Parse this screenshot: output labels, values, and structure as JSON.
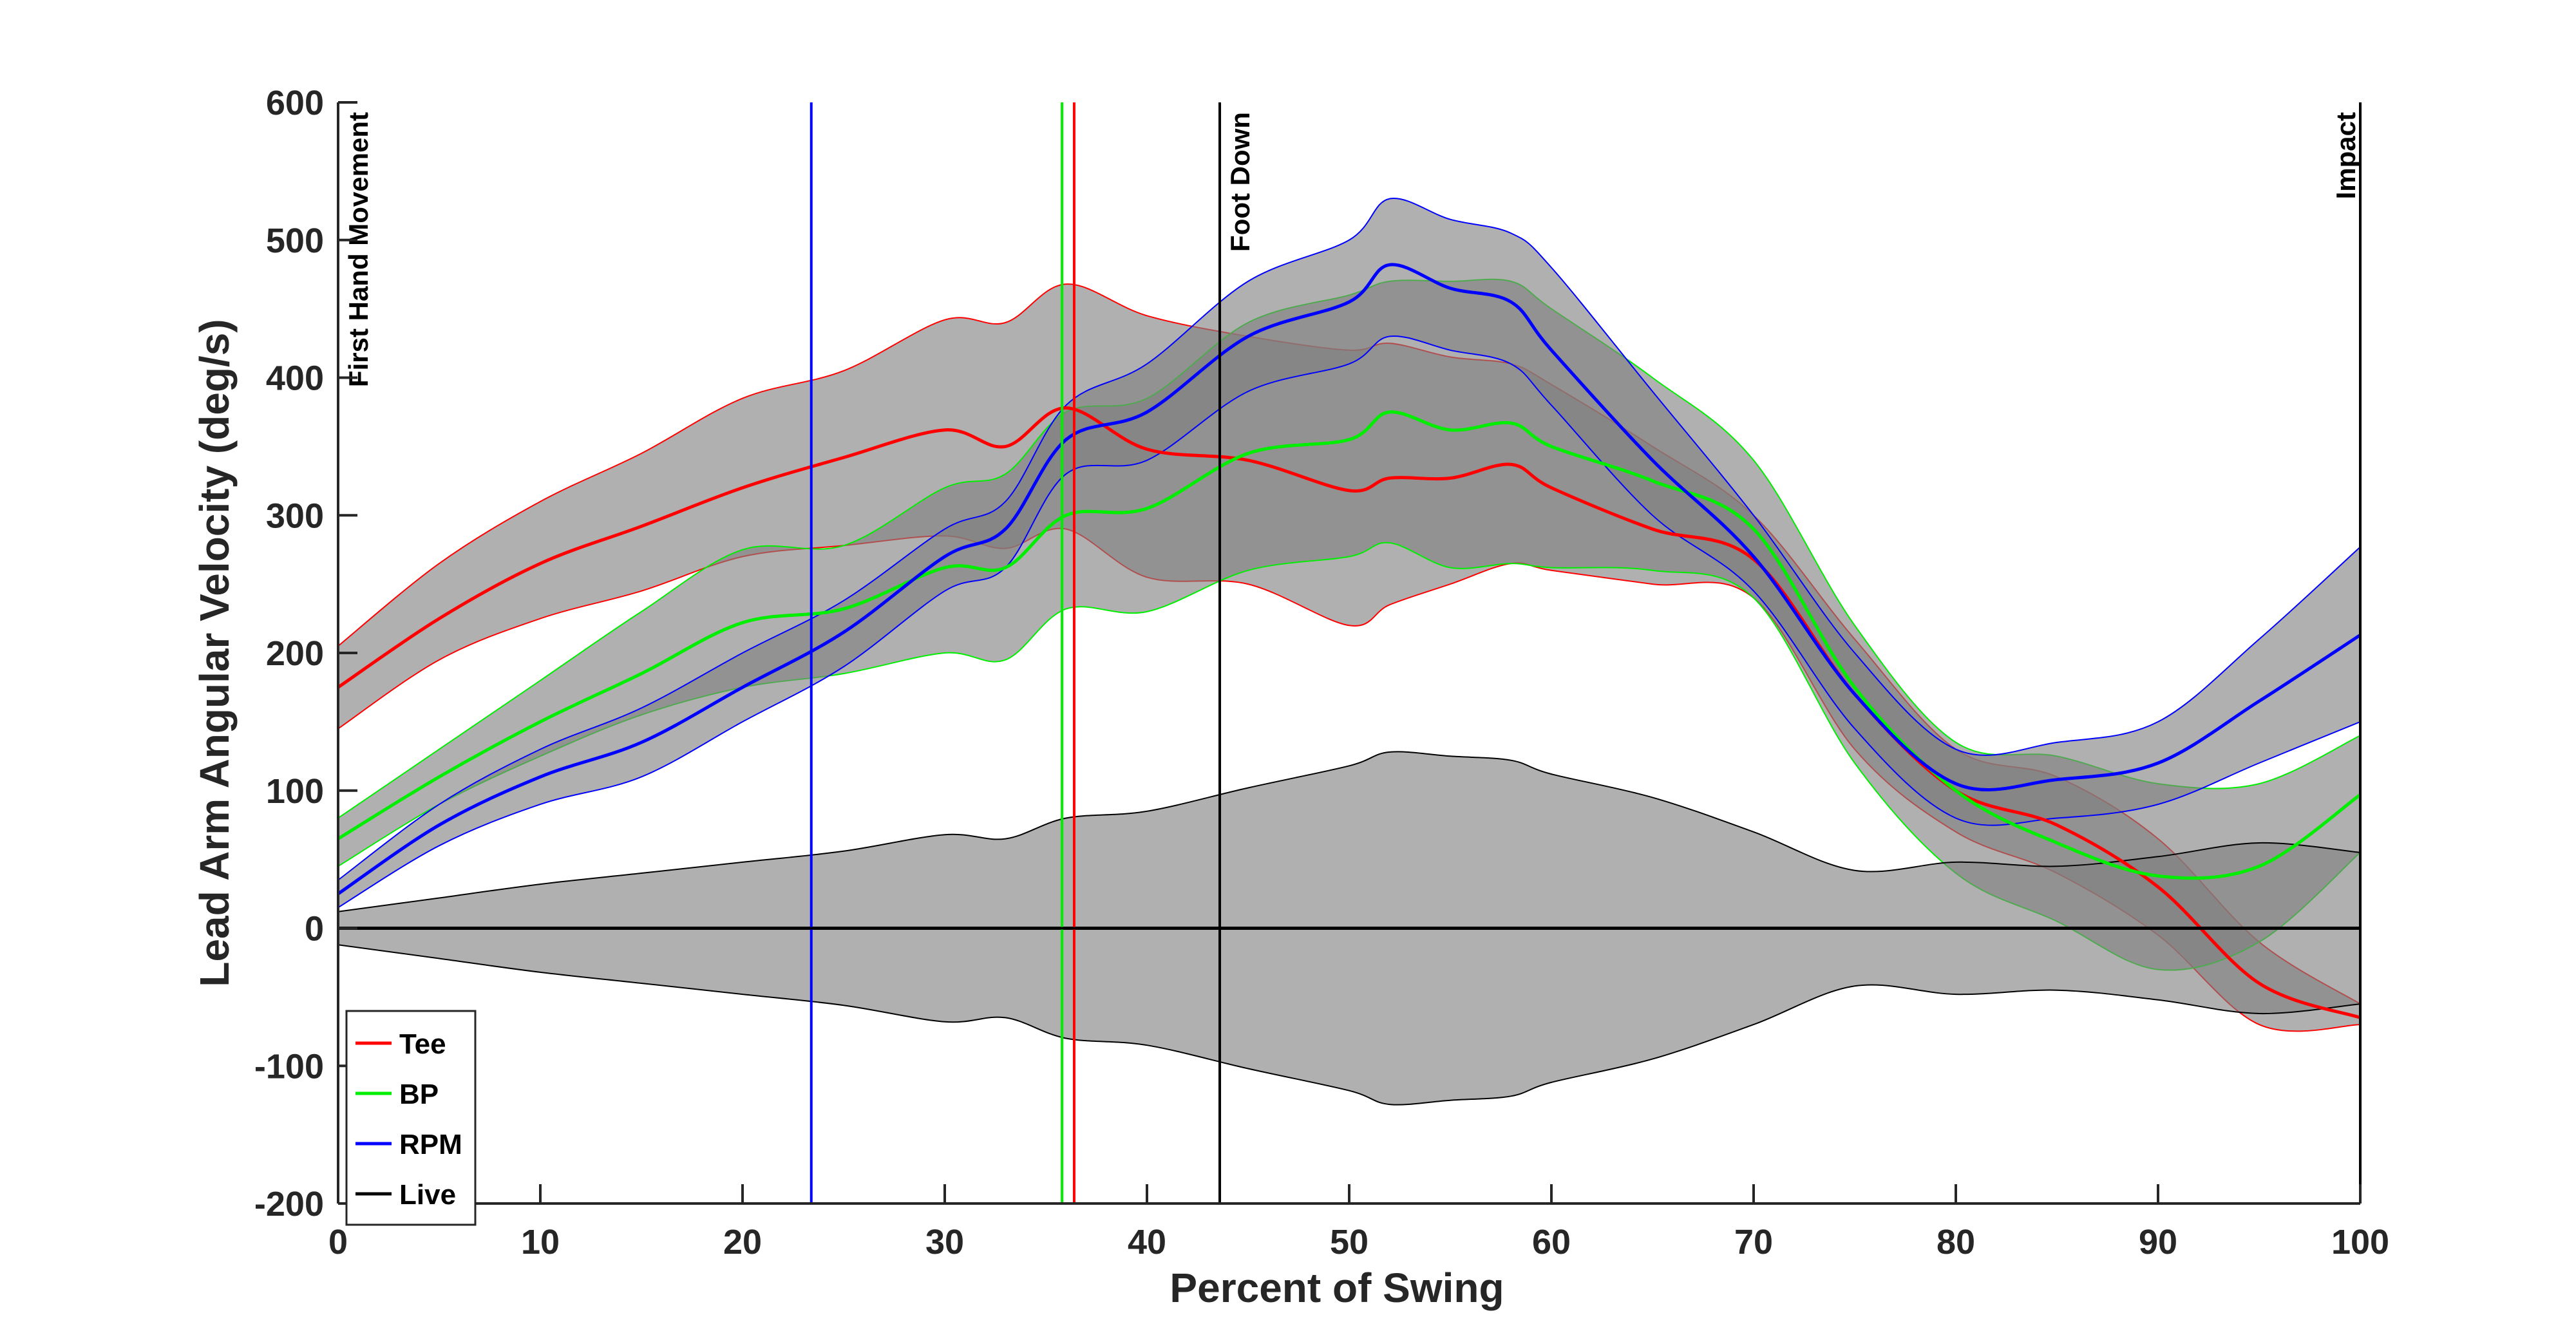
{
  "chart_data": {
    "type": "line",
    "title": "",
    "xlabel": "Percent of Swing",
    "ylabel": "Lead Arm Angular Velocity (deg/s)",
    "xlim": [
      0,
      100
    ],
    "ylim": [
      -200,
      600
    ],
    "xticks": [
      "0",
      "10",
      "20",
      "30",
      "40",
      "50",
      "60",
      "70",
      "80",
      "90",
      "100"
    ],
    "yticks": [
      "-200",
      "-100",
      "0",
      "100",
      "200",
      "300",
      "400",
      "500",
      "600"
    ],
    "grid": false,
    "legend_position": "bottom-left",
    "x": [
      0,
      5,
      10,
      15,
      20,
      25,
      30,
      33,
      36,
      40,
      45,
      50,
      52,
      55,
      58,
      60,
      65,
      70,
      75,
      80,
      85,
      90,
      95,
      100
    ],
    "series": [
      {
        "name": "Tee",
        "color": "#ff0000",
        "mean": [
          175,
          225,
          265,
          292,
          320,
          342,
          362,
          350,
          378,
          348,
          340,
          318,
          327,
          327,
          337,
          320,
          290,
          268,
          170,
          100,
          75,
          30,
          -40,
          -65
        ],
        "upper": [
          205,
          265,
          310,
          345,
          385,
          405,
          442,
          440,
          468,
          445,
          430,
          420,
          425,
          415,
          410,
          395,
          350,
          300,
          210,
          130,
          110,
          65,
          -10,
          -55
        ],
        "lower": [
          145,
          195,
          225,
          245,
          270,
          278,
          285,
          276,
          290,
          255,
          250,
          220,
          235,
          250,
          265,
          260,
          250,
          240,
          130,
          70,
          40,
          -5,
          -70,
          -70
        ]
      },
      {
        "name": "BP",
        "color": "#00ee00",
        "mean": [
          65,
          110,
          150,
          185,
          222,
          232,
          262,
          262,
          300,
          305,
          345,
          355,
          375,
          362,
          367,
          350,
          325,
          290,
          175,
          100,
          62,
          38,
          45,
          97
        ],
        "upper": [
          80,
          130,
          180,
          230,
          275,
          278,
          320,
          330,
          375,
          385,
          440,
          460,
          470,
          470,
          470,
          450,
          400,
          340,
          220,
          135,
          125,
          105,
          105,
          140
        ],
        "lower": [
          45,
          90,
          125,
          155,
          175,
          185,
          200,
          195,
          232,
          230,
          260,
          270,
          280,
          262,
          265,
          262,
          260,
          240,
          120,
          40,
          5,
          -30,
          -10,
          55
        ]
      },
      {
        "name": "RPM",
        "color": "#0000ff",
        "mean": [
          25,
          75,
          110,
          135,
          175,
          215,
          270,
          290,
          355,
          375,
          430,
          455,
          482,
          465,
          455,
          420,
          340,
          270,
          170,
          105,
          108,
          120,
          165,
          213
        ],
        "upper": [
          35,
          90,
          130,
          160,
          200,
          238,
          290,
          310,
          380,
          410,
          470,
          500,
          530,
          515,
          505,
          480,
          390,
          300,
          200,
          130,
          135,
          150,
          210,
          277
        ],
        "lower": [
          15,
          60,
          90,
          110,
          150,
          190,
          245,
          262,
          330,
          340,
          390,
          410,
          430,
          420,
          410,
          380,
          300,
          245,
          145,
          80,
          80,
          90,
          120,
          150
        ]
      },
      {
        "name": "Live",
        "color": "#000000",
        "mean": [
          0,
          0,
          0,
          0,
          0,
          0,
          0,
          0,
          0,
          0,
          0,
          0,
          0,
          0,
          0,
          0,
          0,
          0,
          0,
          0,
          0,
          0,
          0,
          0
        ],
        "upper": [
          12,
          22,
          32,
          40,
          48,
          56,
          68,
          65,
          80,
          85,
          102,
          118,
          128,
          125,
          122,
          112,
          95,
          70,
          42,
          48,
          45,
          52,
          62,
          55
        ],
        "lower": [
          -12,
          -22,
          -32,
          -40,
          -48,
          -56,
          -68,
          -65,
          -80,
          -85,
          -102,
          -118,
          -128,
          -125,
          -122,
          -112,
          -95,
          -70,
          -42,
          -48,
          -45,
          -52,
          -62,
          -55
        ]
      }
    ],
    "vertical_lines": [
      {
        "x": 0,
        "color": "#000000",
        "label": "First Hand Movement"
      },
      {
        "x": 23.4,
        "color": "#0000ff",
        "label": ""
      },
      {
        "x": 35.8,
        "color": "#00ee00",
        "label": ""
      },
      {
        "x": 36.4,
        "color": "#ff0000",
        "label": ""
      },
      {
        "x": 43.6,
        "color": "#000000",
        "label": "Foot Down"
      },
      {
        "x": 100,
        "color": "#000000",
        "label": "Impact"
      }
    ],
    "zero_line": {
      "y": 0,
      "color": "#000000"
    },
    "band_fill": "#808080",
    "band_opacity": 0.62
  }
}
